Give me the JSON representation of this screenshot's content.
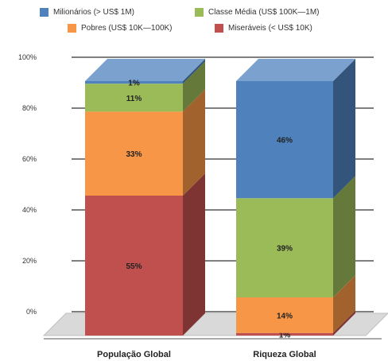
{
  "chart_data": {
    "type": "bar",
    "stacked": true,
    "three_d": true,
    "categories": [
      "População Global",
      "Riqueza Global"
    ],
    "series": [
      {
        "name": "Miseráveis (< US$ 10K)",
        "color": "#c0504d",
        "values": [
          55,
          1
        ],
        "labels": [
          "55%",
          "1%"
        ]
      },
      {
        "name": "Pobres (US$ 10K—100K)",
        "color": "#f79646",
        "values": [
          33,
          14
        ],
        "labels": [
          "33%",
          "14%"
        ]
      },
      {
        "name": "Classe Média (US$ 100K—1M)",
        "color": "#9bbb59",
        "values": [
          11,
          39
        ],
        "labels": [
          "11%",
          "39%"
        ]
      },
      {
        "name": "Milionários (> US$ 1M)",
        "color": "#4f81bd",
        "values": [
          1,
          46
        ],
        "labels": [
          "1%",
          "46%"
        ]
      }
    ],
    "y_ticks": [
      "0%",
      "20%",
      "40%",
      "60%",
      "80%",
      "100%"
    ],
    "ylim": [
      0,
      100
    ],
    "grid": true,
    "legend_position": "top",
    "legend_order": [
      "Milionários (> US$ 1M)",
      "Classe Média (US$ 100K—1M)",
      "Pobres (US$ 10K—100K)",
      "Miseráveis (< US$ 10K)"
    ]
  }
}
